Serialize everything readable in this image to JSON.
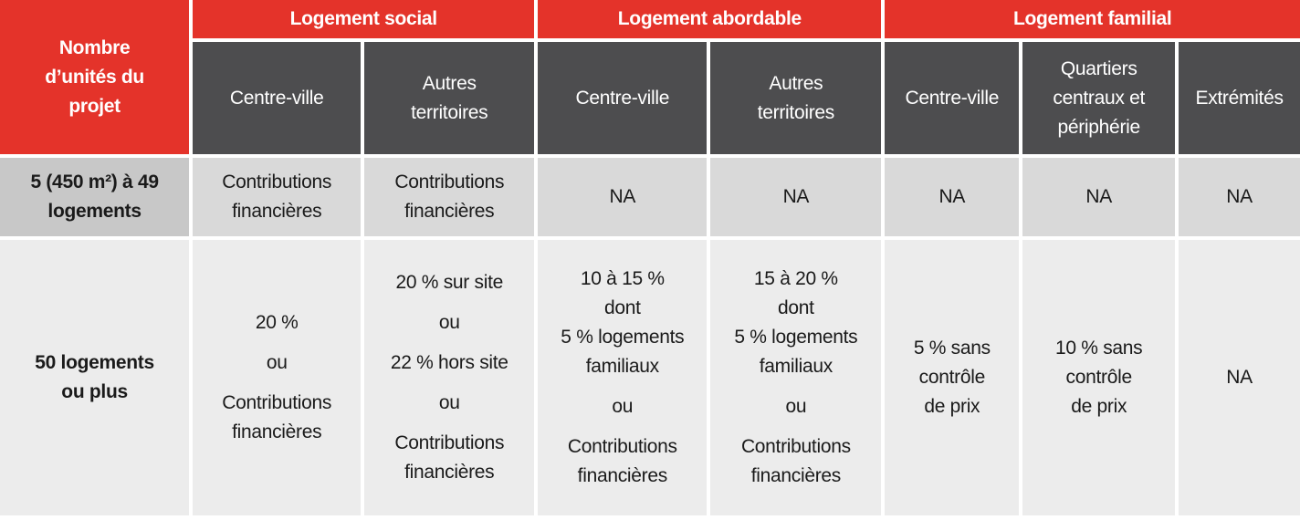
{
  "header": {
    "corner": [
      "Nombre",
      "d’unités du",
      "projet"
    ],
    "groups": [
      {
        "title": "Logement social",
        "columns": [
          [
            "Centre-ville"
          ],
          [
            "Autres",
            "territoires"
          ]
        ]
      },
      {
        "title": "Logement abordable",
        "columns": [
          [
            "Centre-ville"
          ],
          [
            "Autres",
            "territoires"
          ]
        ]
      },
      {
        "title": "Logement familial",
        "columns": [
          [
            "Centre-ville"
          ],
          [
            "Quartiers",
            "centraux et",
            "périphérie"
          ],
          [
            "Extrémités"
          ]
        ]
      }
    ]
  },
  "rows": [
    {
      "label": [
        "5 (450 m²) à 49",
        "logements"
      ],
      "cells": [
        [
          [
            "Contributions",
            "financières"
          ]
        ],
        [
          [
            "Contributions",
            "financières"
          ]
        ],
        [
          [
            "NA"
          ]
        ],
        [
          [
            "NA"
          ]
        ],
        [
          [
            "NA"
          ]
        ],
        [
          [
            "NA"
          ]
        ],
        [
          [
            "NA"
          ]
        ]
      ]
    },
    {
      "label": [
        "50 logements",
        "ou plus"
      ],
      "cells": [
        [
          [
            "20 %"
          ],
          [
            "ou"
          ],
          [
            "Contributions",
            "financières"
          ]
        ],
        [
          [
            "20 % sur site"
          ],
          [
            "ou"
          ],
          [
            "22 % hors site"
          ],
          [
            "ou"
          ],
          [
            "Contributions",
            "financières"
          ]
        ],
        [
          [
            "10 à 15 %",
            "dont",
            "5 % logements",
            "familiaux"
          ],
          [
            "ou"
          ],
          [
            "Contributions",
            "financières"
          ]
        ],
        [
          [
            "15 à 20 %",
            "dont",
            "5 % logements",
            "familiaux"
          ],
          [
            "ou"
          ],
          [
            "Contributions",
            "financières"
          ]
        ],
        [
          [
            "5 % sans",
            "contrôle",
            "de prix"
          ]
        ],
        [
          [
            "10 % sans",
            "contrôle",
            "de prix"
          ]
        ],
        [
          [
            "NA"
          ]
        ]
      ]
    }
  ]
}
